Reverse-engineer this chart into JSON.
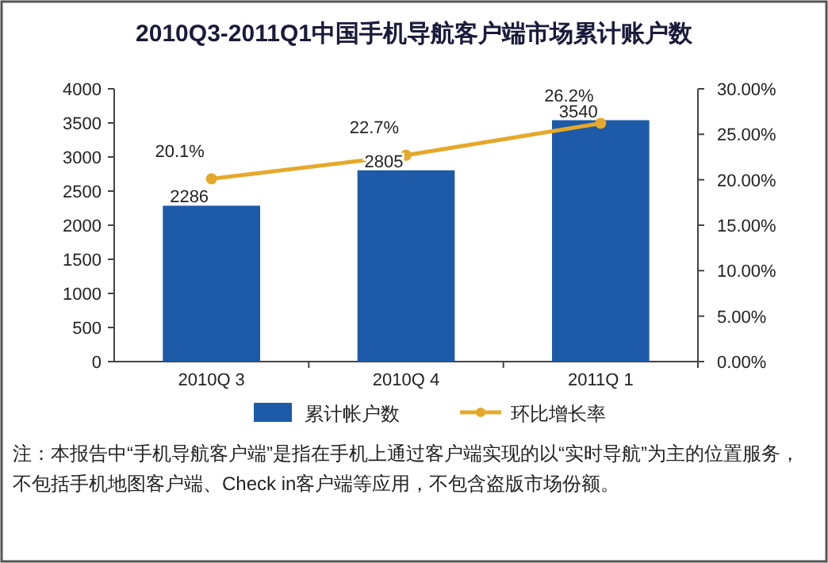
{
  "chart_data": {
    "type": "bar",
    "title": "2010Q3-2011Q1中国手机导航客户端市场累计账户数",
    "categories": [
      "2010Q 3",
      "2010Q 4",
      "2011Q 1"
    ],
    "series": [
      {
        "name": "累计帐户数",
        "color": "#1d5aa8",
        "values": [
          2286,
          2805,
          3540
        ],
        "value_labels": [
          "2286",
          "2805",
          "3540"
        ]
      },
      {
        "name": "环比增长率",
        "type": "line",
        "axis": "y2",
        "color": "#e6a82a",
        "values": [
          20.1,
          22.7,
          26.2
        ],
        "value_labels": [
          "20.1%",
          "22.7%",
          "26.2%"
        ]
      }
    ],
    "ylim": [
      0,
      4000
    ],
    "yticks": [
      0,
      500,
      1000,
      1500,
      2000,
      2500,
      3000,
      3500,
      4000
    ],
    "y2lim": [
      0,
      30
    ],
    "y2ticks": [
      {
        "value": 0,
        "label": "0.00%"
      },
      {
        "value": 5,
        "label": "5.00%"
      },
      {
        "value": 10,
        "label": "10.00%"
      },
      {
        "value": 15,
        "label": "15.00%"
      },
      {
        "value": 20,
        "label": "20.00%"
      },
      {
        "value": 25,
        "label": "25.00%"
      },
      {
        "value": 30,
        "label": "30.00%"
      }
    ],
    "marker": "circle",
    "legend": "bottom",
    "grid": false,
    "annotations": [
      "注：本报告中“手机导航客户端”是指在手机上通过客户端实现的以“实时导航”为主的位置服务，",
      "不包括手机地图客户端、Check in客户端等应用，不包含盗版市场份额。"
    ]
  }
}
